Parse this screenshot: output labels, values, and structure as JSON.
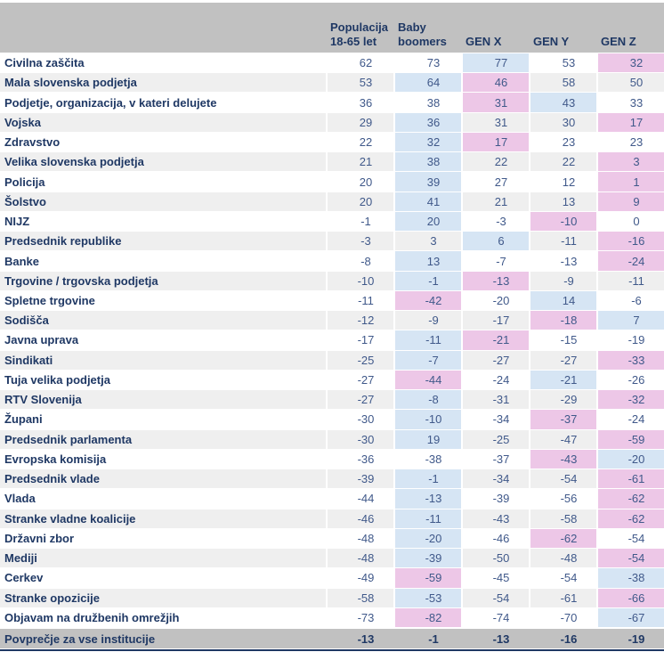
{
  "header": {
    "columns": [
      {
        "lines": [
          "Populacija",
          "18-65 let"
        ]
      },
      {
        "lines": [
          "Baby",
          "boomers"
        ]
      },
      {
        "lines": [
          "GEN X"
        ]
      },
      {
        "lines": [
          "GEN Y"
        ]
      },
      {
        "lines": [
          "GEN Z"
        ]
      }
    ]
  },
  "chart_data": {
    "type": "table",
    "columns": [
      "Populacija 18-65 let",
      "Baby boomers",
      "GEN X",
      "GEN Y",
      "GEN Z"
    ],
    "rows": [
      {
        "label": "Civilna zaščita",
        "values": [
          62,
          73,
          77,
          53,
          32
        ]
      },
      {
        "label": "Mala slovenska podjetja",
        "values": [
          53,
          64,
          46,
          58,
          50
        ]
      },
      {
        "label": "Podjetje, organizacija, v kateri delujete",
        "values": [
          36,
          38,
          31,
          43,
          33
        ]
      },
      {
        "label": "Vojska",
        "values": [
          29,
          36,
          31,
          30,
          17
        ]
      },
      {
        "label": "Zdravstvo",
        "values": [
          22,
          32,
          17,
          23,
          23
        ]
      },
      {
        "label": "Velika slovenska podjetja",
        "values": [
          21,
          38,
          22,
          22,
          3
        ]
      },
      {
        "label": "Policija",
        "values": [
          20,
          39,
          27,
          12,
          1
        ]
      },
      {
        "label": "Šolstvo",
        "values": [
          20,
          41,
          21,
          13,
          9
        ]
      },
      {
        "label": "NIJZ",
        "values": [
          -1,
          20,
          -3,
          -10,
          0
        ]
      },
      {
        "label": "Predsednik republike",
        "values": [
          -3,
          3,
          6,
          -11,
          -16
        ]
      },
      {
        "label": "Banke",
        "values": [
          -8,
          13,
          -7,
          -13,
          -24
        ]
      },
      {
        "label": "Trgovine / trgovska podjetja",
        "values": [
          -10,
          -1,
          -13,
          -9,
          -11
        ]
      },
      {
        "label": "Spletne trgovine",
        "values": [
          -11,
          -42,
          -20,
          14,
          -6
        ]
      },
      {
        "label": "Sodišča",
        "values": [
          -12,
          -9,
          -17,
          -18,
          7
        ]
      },
      {
        "label": "Javna uprava",
        "values": [
          -17,
          -11,
          -21,
          -15,
          -19
        ]
      },
      {
        "label": "Sindikati",
        "values": [
          -25,
          -7,
          -27,
          -27,
          -33
        ]
      },
      {
        "label": "Tuja velika podjetja",
        "values": [
          -27,
          -44,
          -24,
          -21,
          -26
        ]
      },
      {
        "label": "RTV Slovenija",
        "values": [
          -27,
          -8,
          -31,
          -29,
          -32
        ]
      },
      {
        "label": "Župani",
        "values": [
          -30,
          -10,
          -34,
          -37,
          -24
        ]
      },
      {
        "label": "Predsednik parlamenta",
        "values": [
          -30,
          19,
          -25,
          -47,
          -59
        ]
      },
      {
        "label": "Evropska komisija",
        "values": [
          -36,
          -38,
          -37,
          -43,
          -20
        ]
      },
      {
        "label": "Predsednik vlade",
        "values": [
          -39,
          -1,
          -34,
          -54,
          -61
        ]
      },
      {
        "label": "Vlada",
        "values": [
          -44,
          -13,
          -39,
          -56,
          -62
        ]
      },
      {
        "label": "Stranke vladne koalicije",
        "values": [
          -46,
          -11,
          -43,
          -58,
          -62
        ]
      },
      {
        "label": "Državni zbor",
        "values": [
          -48,
          -20,
          -46,
          -62,
          -54
        ]
      },
      {
        "label": "Mediji",
        "values": [
          -48,
          -39,
          -50,
          -48,
          -54
        ]
      },
      {
        "label": "Cerkev",
        "values": [
          -49,
          -59,
          -45,
          -54,
          -38
        ]
      },
      {
        "label": "Stranke opozicije",
        "values": [
          -58,
          -53,
          -54,
          -61,
          -66
        ]
      },
      {
        "label": "Objavam na družbenih omrežjih",
        "values": [
          -73,
          -82,
          -74,
          -70,
          -67
        ]
      }
    ],
    "footer_row": {
      "label": "Povprečje za vse institucije",
      "values": [
        -13,
        -1,
        -13,
        -16,
        -19
      ]
    },
    "highlight": {
      "generation_columns": [
        "Baby boomers",
        "GEN X",
        "GEN Y",
        "GEN Z"
      ],
      "max_of_generations": "light-blue",
      "min_of_generations": "pink"
    },
    "layout_hints": {
      "striped_rows": "even rows gray",
      "grid": "thin white separators"
    }
  },
  "colors": {
    "header_bg": "#c1c1c1",
    "stripe_bg": "#efefef",
    "max_highlight": "#d6e5f4",
    "min_highlight": "#edc7e7",
    "navy_text": "#1f3864",
    "number_text": "#40598a",
    "bottom_border": "#1f3864"
  }
}
